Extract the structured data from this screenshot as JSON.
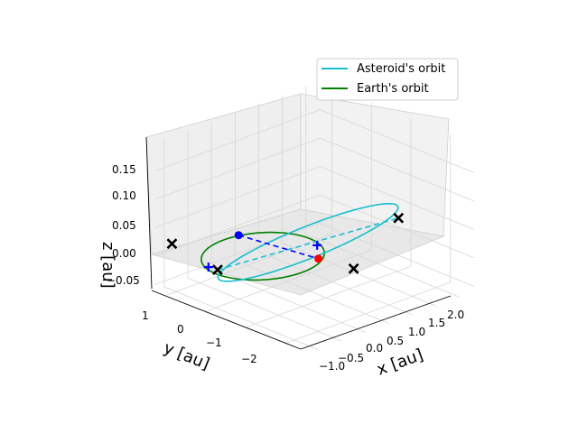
{
  "chart_data": {
    "type": "line",
    "projection": "3d",
    "xlabel": "x [au]",
    "ylabel": "y [au]",
    "zlabel": "z [au]",
    "x_ticks": [
      "−1.0",
      "−0.5",
      "0.0",
      "0.5",
      "1.0",
      "1.5",
      "2.0"
    ],
    "y_ticks": [
      "1",
      "0",
      "−1",
      "−2"
    ],
    "z_ticks": [
      "−0.05",
      "0.00",
      "0.05",
      "0.10",
      "0.15"
    ],
    "xlim": [
      -1.2,
      2.3
    ],
    "ylim": [
      -2.6,
      1.3
    ],
    "zlim": [
      -0.06,
      0.2
    ],
    "grid": true,
    "legend": {
      "position": "top-right",
      "entries": [
        "Asteroid's orbit",
        "Earth's orbit"
      ]
    },
    "series": [
      {
        "name": "Asteroid's orbit",
        "color": "#17becf",
        "style": "solid",
        "orbit": {
          "semi_major_axis": 1.5,
          "eccentricity": 0.5,
          "inclination_deg": 6
        }
      },
      {
        "name": "Earth's orbit",
        "color": "#008000",
        "style": "solid",
        "orbit": {
          "semi_major_axis": 1.0,
          "eccentricity": 0.0,
          "inclination_deg": 0
        }
      }
    ],
    "line_of_apsides": {
      "color": "#17becf",
      "style": "dashed"
    },
    "node_line": {
      "color": "#0000ff",
      "style": "dashed"
    },
    "markers": [
      {
        "kind": "asteroid-position",
        "color": "#0000ff",
        "shape": "circle",
        "x": -0.47,
        "y": 0.05,
        "z": 0.05
      },
      {
        "kind": "earth-position",
        "color": "#ff0000",
        "shape": "circle",
        "x": 0.55,
        "y": -0.75,
        "z": 0.0
      },
      {
        "kind": "asteroid-apoapsis",
        "color": "#000000",
        "shape": "x",
        "x": 1.0,
        "y": -2.24,
        "z": 0.1
      },
      {
        "kind": "asteroid-periapsis",
        "color": "#000000",
        "shape": "x",
        "x": -0.33,
        "y": 0.75,
        "z": -0.035
      },
      {
        "kind": "earth-extreme",
        "color": "#000000",
        "shape": "x",
        "x": 0.67,
        "y": -1.5,
        "z": 0.0
      },
      {
        "kind": "earth-extreme",
        "color": "#000000",
        "shape": "x",
        "x": -0.67,
        "y": 1.5,
        "z": 0.0
      },
      {
        "kind": "node",
        "color": "#0000ff",
        "shape": "plus",
        "x": -0.9,
        "y": 0.3,
        "z": 0.0
      },
      {
        "kind": "node",
        "color": "#0000ff",
        "shape": "plus",
        "x": 0.9,
        "y": -0.3,
        "z": 0.0
      }
    ]
  }
}
